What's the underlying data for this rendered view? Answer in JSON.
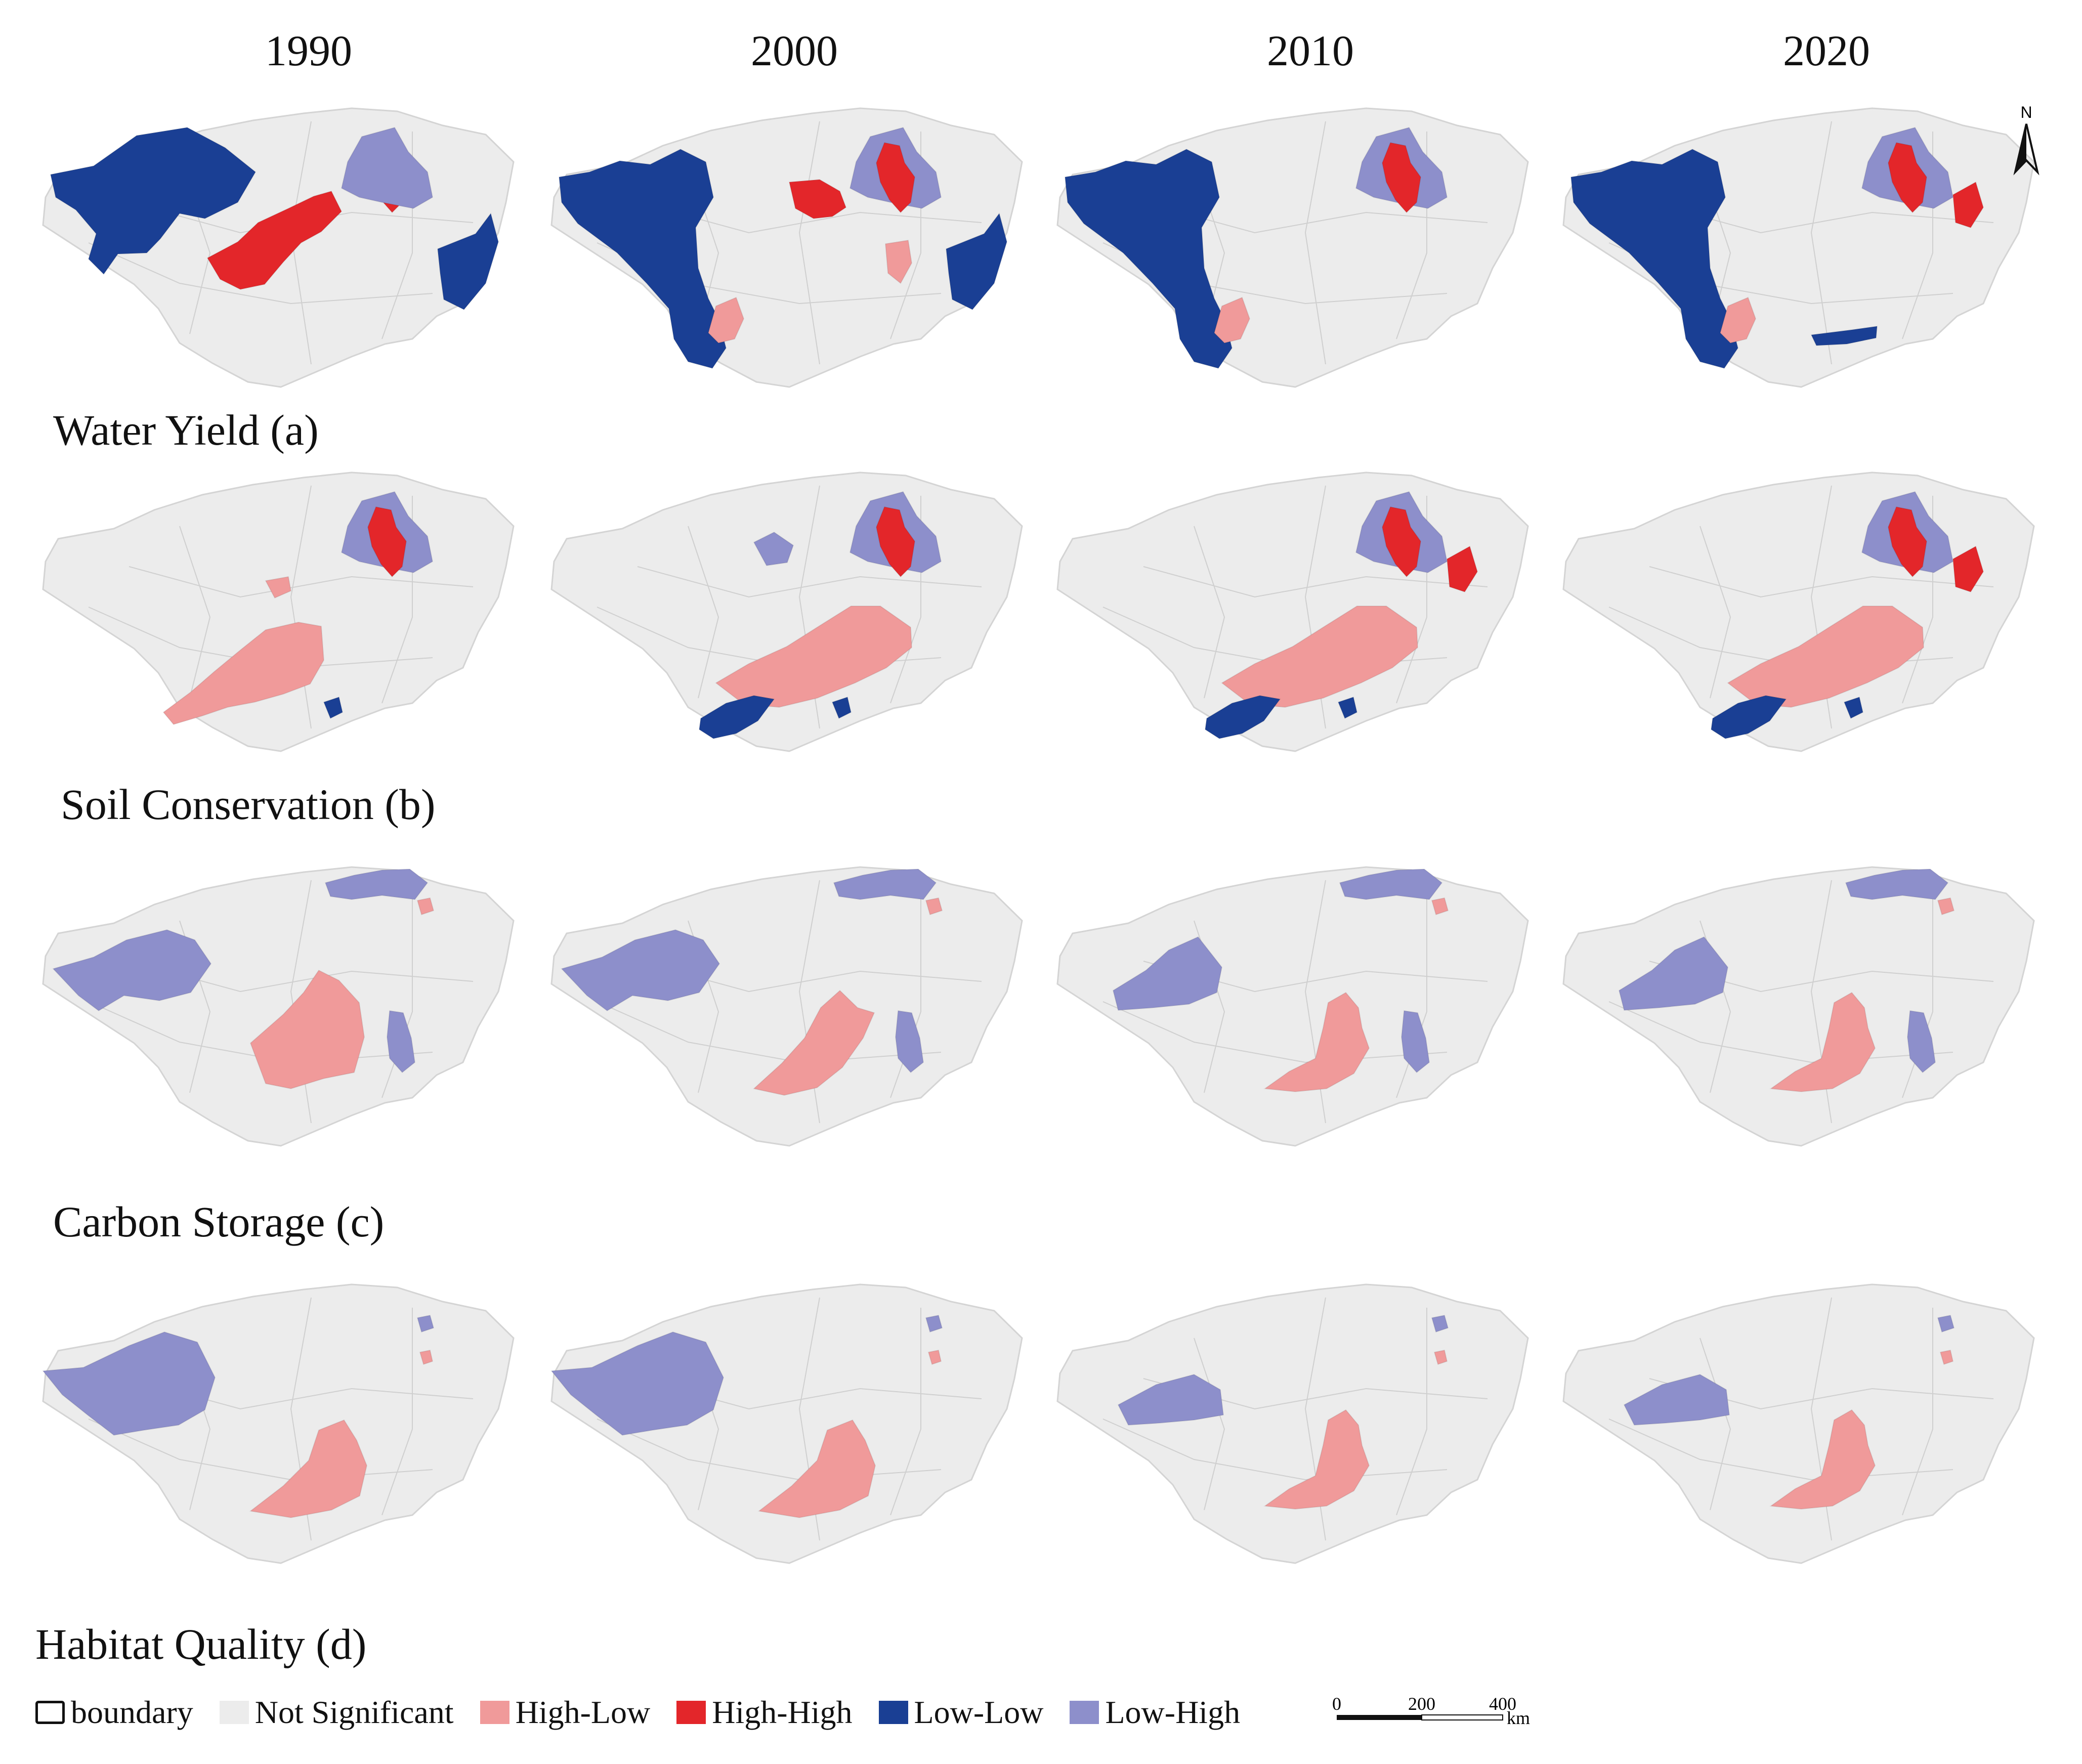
{
  "years": [
    "1990",
    "2000",
    "2010",
    "2020"
  ],
  "rows": [
    {
      "label": "Water Yield  (a)"
    },
    {
      "label": "Soil Conservation  (b)"
    },
    {
      "label": "Carbon Storage  (c)"
    },
    {
      "label": "Habitat Quality  (d)"
    }
  ],
  "legend": {
    "boundary": "boundary",
    "not_significant": "Not Significant",
    "high_low": "High-Low",
    "high_high": "High-High",
    "low_low": "Low-Low",
    "low_high": "Low-High"
  },
  "colors": {
    "not_significant": "#ececec",
    "high_low": "#f09a9a",
    "high_high": "#e3262a",
    "low_low": "#1a3f94",
    "low_high": "#8d8fcb"
  },
  "north_label": "N",
  "scale": {
    "labels": [
      "0",
      "200",
      "400"
    ],
    "unit": "km"
  },
  "maps": [
    [
      [
        "low_low:NW",
        "high_high:C_DIAG",
        "high_high:NE_RED",
        "low_high:NE",
        "low_low:E"
      ],
      [
        "low_low:W_LARGE",
        "high_high:N_CENTER",
        "high_low:SW_SMALL",
        "low_high:NE",
        "high_high:NE_RED",
        "low_low:E",
        "high_low:E_SMALL"
      ],
      [
        "low_low:W_LARGE",
        "high_low:SW_SMALL",
        "low_high:NE",
        "high_high:NE_RED"
      ],
      [
        "low_low:W_LARGE",
        "high_low:SW_SMALL",
        "low_low:S_STRIP",
        "low_high:NE",
        "high_high:NE_RED",
        "high_high:NE_EDGE"
      ]
    ],
    [
      [
        "high_low:C_BIG",
        "high_low:C_SMALL",
        "low_high:NE",
        "high_high:NE_RED",
        "low_low:S_DOT"
      ],
      [
        "high_low:C_BIG2",
        "low_high:N_BLOB",
        "low_high:NE",
        "high_high:NE_RED",
        "low_low:SW_BOTTOM",
        "low_low:S_DOT"
      ],
      [
        "high_low:C_BIG2",
        "low_high:NE",
        "high_high:NE_RED",
        "high_high:NE_EDGE",
        "low_low:SW_BOTTOM",
        "low_low:S_DOT"
      ],
      [
        "high_low:C_BIG2",
        "low_high:NE",
        "high_high:NE_RED",
        "high_high:NE_EDGE",
        "low_low:SW_BOTTOM",
        "low_low:S_DOT"
      ]
    ],
    [
      [
        "low_high:W",
        "low_high:N_TOP",
        "high_low:C_MID",
        "low_high:E_STRIP",
        "high_low:NE_DOT"
      ],
      [
        "low_high:W",
        "low_high:N_TOP",
        "high_low:C_MID2",
        "low_high:E_STRIP",
        "high_low:NE_DOT"
      ],
      [
        "low_high:W2",
        "low_high:N_TOP",
        "high_low:C_MID3",
        "low_high:E_STRIP",
        "high_low:NE_DOT"
      ],
      [
        "low_high:W2",
        "low_high:N_TOP",
        "high_low:C_MID3",
        "low_high:E_STRIP",
        "high_low:NE_DOT"
      ]
    ],
    [
      [
        "low_high:W_BIG",
        "high_low:C_MID4",
        "low_high:NE_DOT",
        "high_low:NE_DOT2"
      ],
      [
        "low_high:W_BIG",
        "high_low:C_MID4",
        "low_high:NE_DOT",
        "high_low:NE_DOT2"
      ],
      [
        "low_high:W3",
        "high_low:C_MID3",
        "low_high:NE_DOT",
        "high_low:NE_DOT2"
      ],
      [
        "low_high:W3",
        "high_low:C_MID3",
        "low_high:NE_DOT",
        "high_low:NE_DOT2"
      ]
    ]
  ]
}
